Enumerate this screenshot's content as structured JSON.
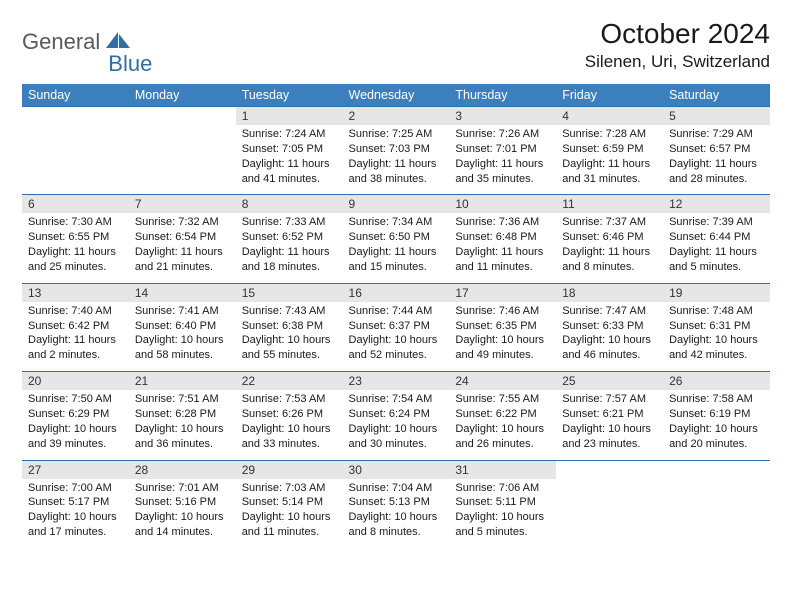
{
  "logo": {
    "text_general": "General",
    "text_blue": "Blue",
    "accent_color": "#2f6fa8"
  },
  "title": "October 2024",
  "location": "Silenen, Uri, Switzerland",
  "header_bg": "#3b7fbf",
  "daynum_bg": "#e6e6e6",
  "border_color": "#2f6fa8",
  "day_headers": [
    "Sunday",
    "Monday",
    "Tuesday",
    "Wednesday",
    "Thursday",
    "Friday",
    "Saturday"
  ],
  "weeks": [
    [
      null,
      null,
      {
        "n": "1",
        "sunrise": "7:24 AM",
        "sunset": "7:05 PM",
        "daylight": "11 hours and 41 minutes."
      },
      {
        "n": "2",
        "sunrise": "7:25 AM",
        "sunset": "7:03 PM",
        "daylight": "11 hours and 38 minutes."
      },
      {
        "n": "3",
        "sunrise": "7:26 AM",
        "sunset": "7:01 PM",
        "daylight": "11 hours and 35 minutes."
      },
      {
        "n": "4",
        "sunrise": "7:28 AM",
        "sunset": "6:59 PM",
        "daylight": "11 hours and 31 minutes."
      },
      {
        "n": "5",
        "sunrise": "7:29 AM",
        "sunset": "6:57 PM",
        "daylight": "11 hours and 28 minutes."
      }
    ],
    [
      {
        "n": "6",
        "sunrise": "7:30 AM",
        "sunset": "6:55 PM",
        "daylight": "11 hours and 25 minutes."
      },
      {
        "n": "7",
        "sunrise": "7:32 AM",
        "sunset": "6:54 PM",
        "daylight": "11 hours and 21 minutes."
      },
      {
        "n": "8",
        "sunrise": "7:33 AM",
        "sunset": "6:52 PM",
        "daylight": "11 hours and 18 minutes."
      },
      {
        "n": "9",
        "sunrise": "7:34 AM",
        "sunset": "6:50 PM",
        "daylight": "11 hours and 15 minutes."
      },
      {
        "n": "10",
        "sunrise": "7:36 AM",
        "sunset": "6:48 PM",
        "daylight": "11 hours and 11 minutes."
      },
      {
        "n": "11",
        "sunrise": "7:37 AM",
        "sunset": "6:46 PM",
        "daylight": "11 hours and 8 minutes."
      },
      {
        "n": "12",
        "sunrise": "7:39 AM",
        "sunset": "6:44 PM",
        "daylight": "11 hours and 5 minutes."
      }
    ],
    [
      {
        "n": "13",
        "sunrise": "7:40 AM",
        "sunset": "6:42 PM",
        "daylight": "11 hours and 2 minutes."
      },
      {
        "n": "14",
        "sunrise": "7:41 AM",
        "sunset": "6:40 PM",
        "daylight": "10 hours and 58 minutes."
      },
      {
        "n": "15",
        "sunrise": "7:43 AM",
        "sunset": "6:38 PM",
        "daylight": "10 hours and 55 minutes."
      },
      {
        "n": "16",
        "sunrise": "7:44 AM",
        "sunset": "6:37 PM",
        "daylight": "10 hours and 52 minutes."
      },
      {
        "n": "17",
        "sunrise": "7:46 AM",
        "sunset": "6:35 PM",
        "daylight": "10 hours and 49 minutes."
      },
      {
        "n": "18",
        "sunrise": "7:47 AM",
        "sunset": "6:33 PM",
        "daylight": "10 hours and 46 minutes."
      },
      {
        "n": "19",
        "sunrise": "7:48 AM",
        "sunset": "6:31 PM",
        "daylight": "10 hours and 42 minutes."
      }
    ],
    [
      {
        "n": "20",
        "sunrise": "7:50 AM",
        "sunset": "6:29 PM",
        "daylight": "10 hours and 39 minutes."
      },
      {
        "n": "21",
        "sunrise": "7:51 AM",
        "sunset": "6:28 PM",
        "daylight": "10 hours and 36 minutes."
      },
      {
        "n": "22",
        "sunrise": "7:53 AM",
        "sunset": "6:26 PM",
        "daylight": "10 hours and 33 minutes."
      },
      {
        "n": "23",
        "sunrise": "7:54 AM",
        "sunset": "6:24 PM",
        "daylight": "10 hours and 30 minutes."
      },
      {
        "n": "24",
        "sunrise": "7:55 AM",
        "sunset": "6:22 PM",
        "daylight": "10 hours and 26 minutes."
      },
      {
        "n": "25",
        "sunrise": "7:57 AM",
        "sunset": "6:21 PM",
        "daylight": "10 hours and 23 minutes."
      },
      {
        "n": "26",
        "sunrise": "7:58 AM",
        "sunset": "6:19 PM",
        "daylight": "10 hours and 20 minutes."
      }
    ],
    [
      {
        "n": "27",
        "sunrise": "7:00 AM",
        "sunset": "5:17 PM",
        "daylight": "10 hours and 17 minutes."
      },
      {
        "n": "28",
        "sunrise": "7:01 AM",
        "sunset": "5:16 PM",
        "daylight": "10 hours and 14 minutes."
      },
      {
        "n": "29",
        "sunrise": "7:03 AM",
        "sunset": "5:14 PM",
        "daylight": "10 hours and 11 minutes."
      },
      {
        "n": "30",
        "sunrise": "7:04 AM",
        "sunset": "5:13 PM",
        "daylight": "10 hours and 8 minutes."
      },
      {
        "n": "31",
        "sunrise": "7:06 AM",
        "sunset": "5:11 PM",
        "daylight": "10 hours and 5 minutes."
      },
      null,
      null
    ]
  ]
}
